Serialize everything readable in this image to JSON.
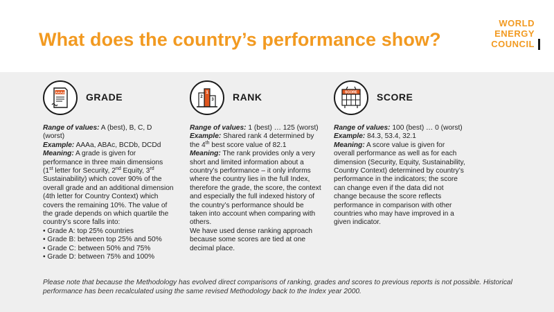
{
  "header": {
    "title": "What does the country’s performance show?",
    "logo_words": [
      "WORLD",
      "ENERGY",
      "COUNCIL"
    ]
  },
  "colors": {
    "accent": "#f29a21",
    "icon_fill": "#e0561f",
    "text": "#222222",
    "band": "#efefef"
  },
  "grade": {
    "title": "GRADE",
    "icon": "grade-document-icon",
    "icon_text": "AAAa",
    "range_label": "Range of values:",
    "range_value": " A (best), B, C, D (worst)",
    "example_label": "Example:",
    "example_value": " AAAa, ABAc, BCDb, DCDd",
    "meaning_label": "Meaning:",
    "meaning_p1": " A grade is given for performance in three main dimensions (1",
    "sup_st": "st",
    "meaning_p2": " letter for Security, 2",
    "sup_nd": "nd",
    "meaning_p3": " Equity, 3",
    "sup_rd": "rd",
    "meaning_p4": " Sustainability) which cover 90% of the overall grade and an additional dimension (4th letter for Country Context) which covers the remaining 10%. The value of the grade depends on which quartile the country’s score falls into:",
    "bullets": [
      "Grade A: top 25% countries",
      "Grade B: between top 25% and 50%",
      "Grade C: between 50% and 75%",
      "Grade D: between 75% and 100%"
    ]
  },
  "rank": {
    "title": "RANK",
    "icon": "podium-icon",
    "podium_first": "1",
    "podium_second": "2",
    "podium_third": "3",
    "range_label": "Range of values:",
    "range_value": " 1 (best) … 125 (worst)",
    "example_label": "Example:",
    "example_value_1": " Shared rank 4 determined by the 4",
    "sup_th": "th",
    "example_value_2": " best score value of 82.1",
    "meaning_label": "Meaning:",
    "meaning_value": " The rank provides only a very short and limited information about a country’s performance – it only informs where the country lies in the full Index, therefore the grade, the score, the context and especially the full indexed history of the country’s performance should be taken into account when comparing with others.",
    "note": "We have used dense ranking approach because some scores are tied at one decimal place."
  },
  "score": {
    "title": "SCORE",
    "icon": "scoreboard-icon",
    "icon_text": "SCORE",
    "range_label": "Range of values:",
    "range_value": " 100 (best) … 0 (worst)",
    "example_label": "Example:",
    "example_value": " 84.3, 53.4, 32.1",
    "meaning_label": "Meaning:",
    "meaning_value": " A score value is given for overall performance as well as for each dimension (Security, Equity, Sustainability, Country Context) determined by country’s performance in the indicators; the score can change even if the data did not change because the score reflects performance in comparison with other countries who may have improved in a given indicator."
  },
  "footnote": "Please note that because the Methodology has evolved direct comparisons of ranking, grades and scores to previous reports is not possible. Historical performance has been recalculated using the same revised Methodology back to the Index year 2000."
}
